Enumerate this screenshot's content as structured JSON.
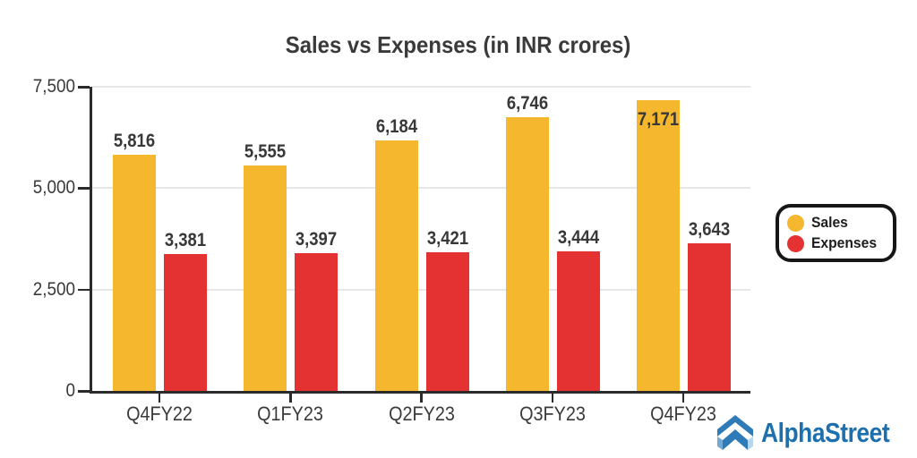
{
  "title": "Sales vs Expenses (in INR crores)",
  "chart_data": {
    "type": "bar",
    "title": "Sales vs Expenses (in INR crores)",
    "categories": [
      "Q4FY22",
      "Q1FY23",
      "Q2FY23",
      "Q3FY23",
      "Q4FY23"
    ],
    "series": [
      {
        "name": "Sales",
        "color": "#F5B72E",
        "values": [
          5816,
          5555,
          6184,
          6746,
          7171
        ]
      },
      {
        "name": "Expenses",
        "color": "#E43132",
        "values": [
          3381,
          3397,
          3421,
          3444,
          3643
        ]
      }
    ],
    "ylim": [
      0,
      7500
    ],
    "yticks": [
      0,
      2500,
      5000,
      7500
    ],
    "ytick_labels": [
      "0",
      "2,500",
      "5,000",
      "7,500"
    ],
    "grid": true,
    "value_labels": true,
    "legend_position": "right",
    "xlabel": "",
    "ylabel": ""
  },
  "brand": {
    "name": "AlphaStreet",
    "color": "#1E6FAD"
  },
  "colors": {
    "text": "#3A3A3A",
    "axis": "#2B2B2B",
    "grid": "#E7E7E7",
    "background": "#FFFFFF",
    "logo_dark_blue": "#2E7BB8",
    "logo_light_blue_left": "#74A9D3",
    "logo_light_blue_right": "#BAD6EB"
  }
}
